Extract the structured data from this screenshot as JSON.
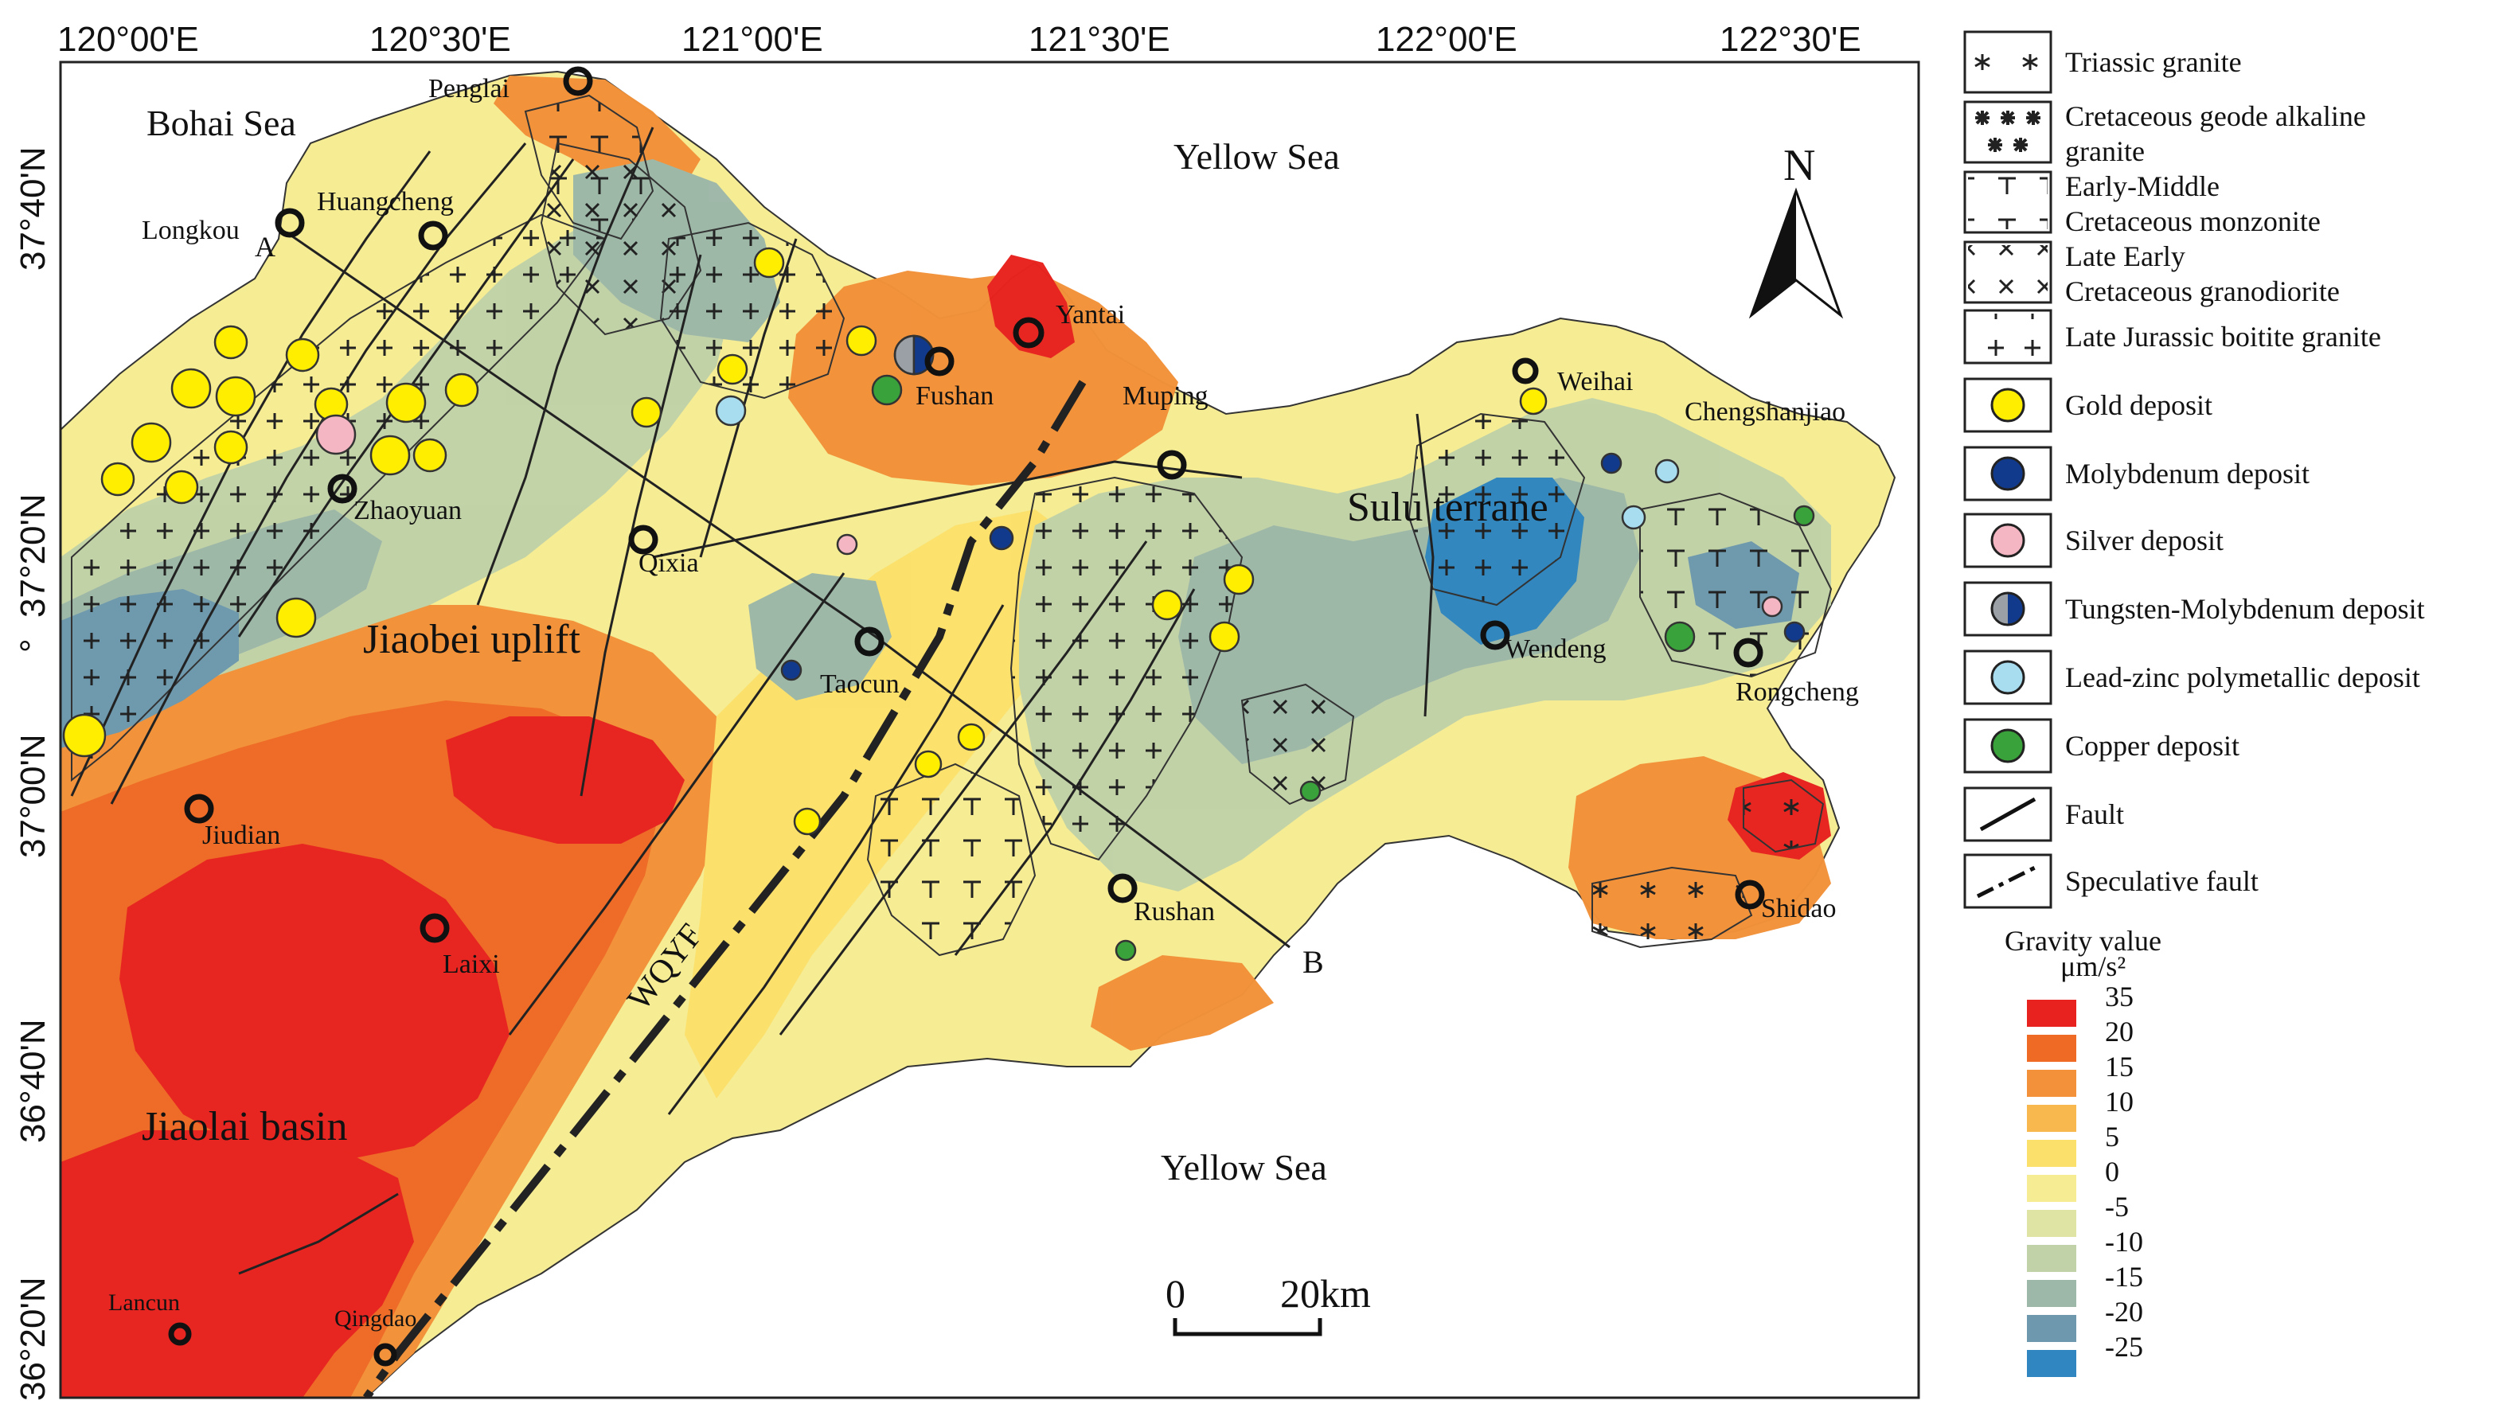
{
  "map": {
    "longitude_ticks": [
      "120°00'E",
      "120°30'E",
      "121°00'E",
      "121°30'E",
      "122°00'E",
      "122°30'E"
    ],
    "latitude_ticks": [
      "37°40'N",
      "37°20'N",
      "°",
      "37°00'N",
      "36°40'N",
      "36°20'N"
    ],
    "sea_labels": {
      "bohai": "Bohai Sea",
      "yellow_north": "Yellow  Sea",
      "yellow_south": "Yellow  Sea"
    },
    "region_labels": {
      "jiaobei": "Jiaobei uplift",
      "jiaolai": "Jiaolai basin",
      "sulu": "Sulu terrane",
      "woyf": "WQYF"
    },
    "cities": {
      "penglai": "Penglai",
      "longkou": "Longkou",
      "huangcheng": "Huangcheng",
      "yantai": "Yantai",
      "fushan": "Fushan",
      "muping": "Muping",
      "weihai": "Weihai",
      "chengshanjiao": "Chengshanjiao",
      "zhaoyuan": "Zhaoyuan",
      "qixia": "Qixia",
      "taocun": "Taocun",
      "wendeng": "Wendeng",
      "rongcheng": "Rongcheng",
      "jiudian": "Jiudian",
      "laixi": "Laixi",
      "rushan": "Rushan",
      "shidao": "Shidao",
      "lancun": "Lancun",
      "qingdao": "Qingdao"
    },
    "profile_points": {
      "a": "A",
      "b": "B"
    },
    "north_arrow": "N",
    "scale_bar": {
      "zero": "0",
      "distance": "20km"
    }
  },
  "legend": {
    "items": [
      {
        "symbol": "asterisk-pattern",
        "label_lines": [
          "Triassic granite"
        ]
      },
      {
        "symbol": "x-plus-pattern",
        "label_lines": [
          "Cretaceous geode alkaline",
          "granite"
        ]
      },
      {
        "symbol": "t-pattern",
        "label_lines": [
          "Early-Middle",
          "Cretaceous monzonite"
        ]
      },
      {
        "symbol": "x-pattern",
        "label_lines": [
          "Late Early",
          "Cretaceous  granodiorite"
        ]
      },
      {
        "symbol": "plus-pattern",
        "label_lines": [
          "Late Jurassic boitite granite"
        ]
      },
      {
        "symbol": "dot",
        "color": "#ffee00",
        "label_lines": [
          "Gold deposit"
        ]
      },
      {
        "symbol": "dot",
        "color": "#123a8c",
        "label_lines": [
          "Molybdenum deposit"
        ]
      },
      {
        "symbol": "dot",
        "color": "#f4b6c2",
        "label_lines": [
          "Silver deposit"
        ]
      },
      {
        "symbol": "half-dot",
        "color": "#123a8c",
        "color2": "#9aa0a6",
        "label_lines": [
          "Tungsten-Molybdenum deposit"
        ]
      },
      {
        "symbol": "dot",
        "color": "#a8dcef",
        "label_lines": [
          "Lead-zinc polymetallic deposit"
        ]
      },
      {
        "symbol": "dot",
        "color": "#3aa23a",
        "label_lines": [
          "Copper deposit"
        ]
      },
      {
        "symbol": "solid-line",
        "label_lines": [
          "Fault"
        ]
      },
      {
        "symbol": "dashed-line",
        "label_lines": [
          "Speculative fault"
        ]
      }
    ],
    "gravity_title": "Gravity value",
    "gravity_unit": "μm/s²",
    "gravity_scale": [
      {
        "value": "35",
        "color": "#e8231f"
      },
      {
        "value": "20",
        "color": "#ee6a25"
      },
      {
        "value": "15",
        "color": "#f2913a"
      },
      {
        "value": "10",
        "color": "#f8b84d"
      },
      {
        "value": "5",
        "color": "#fce06c"
      },
      {
        "value": "0",
        "color": "#f5ec93"
      },
      {
        "value": "-5",
        "color": "#dfe3a4"
      },
      {
        "value": "-10",
        "color": "#c2d2a8"
      },
      {
        "value": "-15",
        "color": "#9db7a9"
      },
      {
        "value": "-20",
        "color": "#6d98ae"
      },
      {
        "value": "-25",
        "color": "#2f86c0"
      }
    ]
  }
}
